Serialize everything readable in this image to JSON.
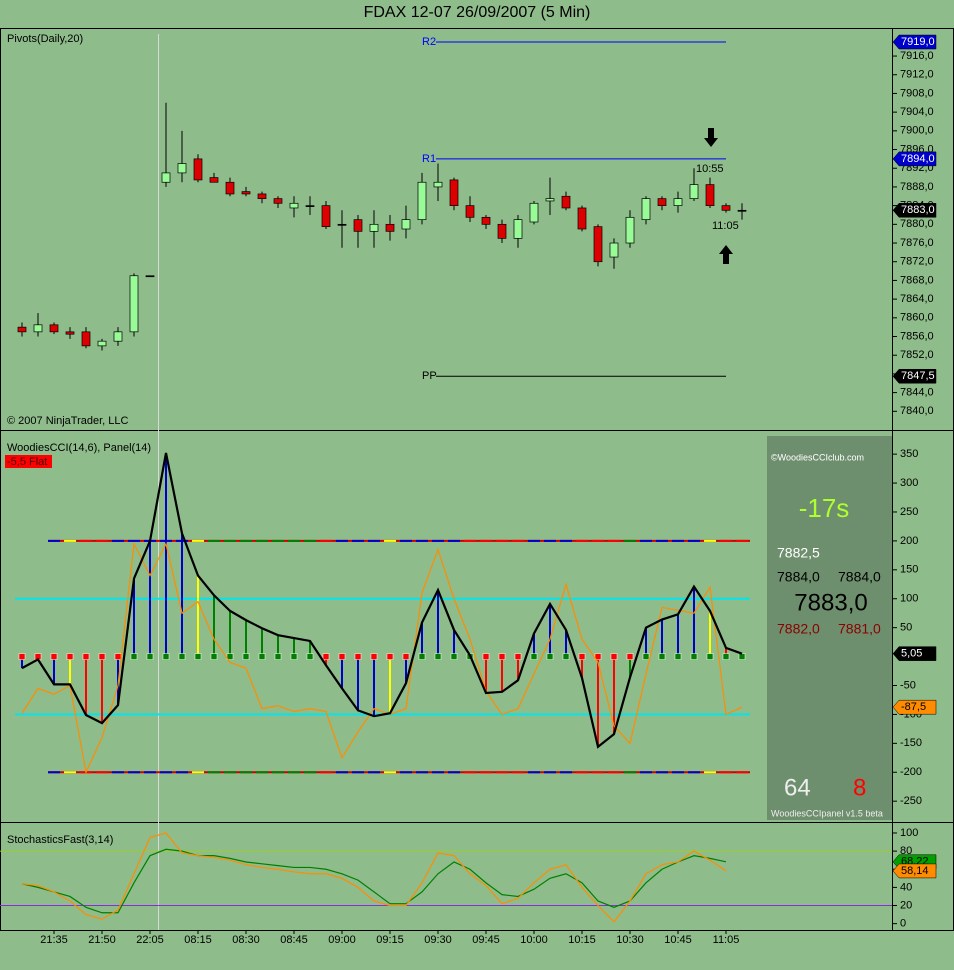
{
  "chart_data": [
    {
      "type": "candlestick",
      "title": "FDAX 12-07  26/09/2007  (5 Min)",
      "label": "Pivots(Daily,20)",
      "copyright": "© 2007 NinjaTrader, LLC",
      "open": [
        7858,
        7857,
        7858.5,
        7857,
        7857,
        7854,
        7855,
        7857,
        7869,
        7889,
        7891,
        7894,
        7890,
        7889,
        7887,
        7886.5,
        7885.5,
        7883.5,
        7884,
        7884,
        7880,
        7881,
        7878.5,
        7880,
        7879,
        7881,
        7888,
        7889.5,
        7884,
        7881.5,
        7880,
        7877,
        7880.5,
        7885,
        7886,
        7883.5,
        7879.5,
        7873,
        7876,
        7881,
        7885.5,
        7884,
        7885.5,
        7888.5,
        7884,
        7883
      ],
      "high": [
        7859,
        7861,
        7859,
        7858,
        7858,
        7855.5,
        7858,
        7869.5,
        7869,
        7906,
        7900,
        7895,
        7891,
        7890,
        7888,
        7887,
        7886,
        7886,
        7886,
        7885,
        7883,
        7882,
        7883,
        7882,
        7884,
        7891,
        7893,
        7890,
        7886,
        7882,
        7881,
        7882,
        7885,
        7890,
        7887,
        7884,
        7880,
        7877,
        7883,
        7886,
        7886,
        7887,
        7892,
        7890,
        7884.5,
        7884.5
      ],
      "low": [
        7856,
        7856,
        7856.5,
        7855.5,
        7853.5,
        7853,
        7854,
        7856,
        7869,
        7888,
        7889,
        7889,
        7889,
        7886,
        7886,
        7884.5,
        7883.5,
        7881.5,
        7882,
        7879,
        7875,
        7875,
        7875,
        7876.5,
        7877,
        7880,
        7885,
        7883,
        7880.5,
        7879,
        7876,
        7875,
        7880,
        7882,
        7883,
        7878.5,
        7871,
        7870.5,
        7875,
        7880,
        7883,
        7882.5,
        7885,
        7883.5,
        7882.5,
        7881
      ],
      "close": [
        7857,
        7858.5,
        7857,
        7856.5,
        7854,
        7855,
        7857,
        7869,
        7869,
        7891,
        7893,
        7889.5,
        7889,
        7886.5,
        7886.5,
        7885.5,
        7884.5,
        7884.5,
        7884,
        7879.5,
        7880,
        7878.5,
        7880,
        7878.5,
        7881,
        7889,
        7889,
        7884,
        7881.5,
        7880,
        7877,
        7881,
        7884.5,
        7885.5,
        7883.5,
        7879,
        7872,
        7876,
        7881.5,
        7885.5,
        7884,
        7885.5,
        7888.5,
        7884,
        7883,
        7883
      ],
      "up_color": "#98fb98",
      "down_color": "#dd0000",
      "pivots": [
        {
          "name": "R2",
          "value": 7919,
          "label": "7919,0",
          "color": "#0000ff"
        },
        {
          "name": "R1",
          "value": 7894,
          "label": "7894,0",
          "color": "#0000ff"
        },
        {
          "name": "PP",
          "value": 7847.5,
          "label": "7847,5",
          "color": "#000000"
        }
      ],
      "last_price": {
        "value": 7883,
        "label": "7883,0"
      },
      "annotations": [
        "10:55",
        "11:05"
      ],
      "ylim": [
        7836,
        7922
      ],
      "yticks": [
        {
          "value": 7840,
          "label": "7840,0"
        },
        {
          "value": 7844,
          "label": "7844,0"
        },
        {
          "value": 7848,
          "label": "7848,0"
        },
        {
          "value": 7852,
          "label": "7852,0"
        },
        {
          "value": 7856,
          "label": "7856,0"
        },
        {
          "value": 7860,
          "label": "7860,0"
        },
        {
          "value": 7864,
          "label": "7864,0"
        },
        {
          "value": 7868,
          "label": "7868,0"
        },
        {
          "value": 7872,
          "label": "7872,0"
        },
        {
          "value": 7876,
          "label": "7876,0"
        },
        {
          "value": 7880,
          "label": "7880,0"
        },
        {
          "value": 7884,
          "label": "7884,0"
        },
        {
          "value": 7888,
          "label": "7888,0"
        },
        {
          "value": 7892,
          "label": "7892,0"
        },
        {
          "value": 7896,
          "label": "7896,0"
        },
        {
          "value": 7900,
          "label": "7900,0"
        },
        {
          "value": 7904,
          "label": "7904,0"
        },
        {
          "value": 7908,
          "label": "7908,0"
        },
        {
          "value": 7912,
          "label": "7912,0"
        },
        {
          "value": 7916,
          "label": "7916,0"
        }
      ]
    },
    {
      "type": "cci",
      "label": "WoodiesCCI(14,6), Panel(14)",
      "trend_tag": "-5,5 Flat",
      "values": [
        -20,
        -5,
        -48,
        -48,
        -101,
        -115,
        -84,
        135,
        200,
        352,
        213,
        140,
        106,
        79,
        63,
        49,
        37,
        32,
        27,
        -15,
        -55,
        -93,
        -103,
        -98,
        -46,
        59,
        115,
        46,
        2,
        -63,
        -61,
        -41,
        40,
        91,
        46,
        -37,
        -156,
        -134,
        -36,
        50,
        64,
        73,
        121,
        79,
        15,
        5.05
      ],
      "value_label": "5,05",
      "color": "#000000",
      "bar_colors": [
        "#0000cd",
        "#0000cd",
        "#0000cd",
        "#ffff00",
        "#ff0000",
        "#ff0000",
        "#0000cd",
        "#0000cd",
        "#0000cd",
        "#0000cd",
        "#0000cd",
        "#ffff00",
        "#008000",
        "#008000",
        "#008000",
        "#008000",
        "#008000",
        "#008000",
        "#008000",
        "#ff0000",
        "#0000cd",
        "#0000cd",
        "#0000cd",
        "#ffff00",
        "#0000cd",
        "#0000cd",
        "#0000cd",
        "#0000cd",
        "#ff0000",
        "#ff0000",
        "#ff0000",
        "#ff0000",
        "#0000cd",
        "#0000cd",
        "#0000cd",
        "#ff0000",
        "#ff0000",
        "#ff0000",
        "#008000",
        "#0000cd",
        "#0000cd",
        "#0000cd",
        "#0000cd",
        "#ffff00",
        "#ff0000",
        "#ff0000"
      ],
      "turbo": {
        "color": "#ff8c00",
        "values": [
          -98,
          -55,
          -65,
          -50,
          -200,
          -140,
          -50,
          195,
          140,
          195,
          75,
          95,
          30,
          -10,
          -20,
          -90,
          -85,
          -95,
          -90,
          -95,
          -175,
          -130,
          -90,
          -100,
          -90,
          110,
          185,
          100,
          30,
          -60,
          -100,
          -90,
          -30,
          30,
          125,
          30,
          -10,
          -120,
          -150,
          -30,
          85,
          80,
          75,
          120,
          -100,
          -87.5
        ],
        "value_label": "-87,5"
      },
      "levels": [
        200,
        100,
        -100,
        -200
      ],
      "level_colors": [
        "#cc0000",
        "#00e5ee",
        "#00e5ee",
        "#cc0000"
      ],
      "panel": {
        "site": "©WoodiesCCIclub.com",
        "timer": "-17s",
        "mid": "7882,5",
        "ask": [
          "7884,0",
          "7884,0"
        ],
        "last": "7883,0",
        "bid": [
          "7882,0",
          "7881,0"
        ],
        "count_up": "64",
        "count_down": "8",
        "footer": "WoodiesCCIpanel v1.5 beta"
      },
      "ylim": [
        -286,
        390
      ],
      "yticks": [
        -250,
        -200,
        -150,
        -100,
        -50,
        50,
        100,
        150,
        200,
        250,
        300,
        350
      ]
    },
    {
      "type": "stochastics",
      "label": "StochasticsFast(3,14)",
      "categories": [
        null,
        null,
        "21:35",
        null,
        null,
        "21:50",
        null,
        null,
        "22:05",
        null,
        null,
        "08:15",
        null,
        null,
        "08:30",
        null,
        null,
        "08:45",
        null,
        null,
        "09:00",
        null,
        null,
        "09:15",
        null,
        null,
        "09:30",
        null,
        null,
        "09:45",
        null,
        null,
        "10:00",
        null,
        null,
        "10:15",
        null,
        null,
        "10:30",
        null,
        null,
        "10:45",
        null,
        null,
        "11:05",
        null
      ],
      "series": [
        {
          "color": "#008000",
          "values": [
            44,
            40,
            35,
            30,
            18,
            12,
            12,
            45,
            75,
            82,
            80,
            75,
            75,
            72,
            68,
            66,
            64,
            62,
            62,
            60,
            55,
            48,
            35,
            22,
            22,
            35,
            55,
            68,
            60,
            45,
            32,
            30,
            38,
            50,
            55,
            45,
            25,
            18,
            25,
            45,
            60,
            68,
            75,
            72,
            68.22,
            null
          ],
          "value_label": "68,22"
        },
        {
          "color": "#ff8c00",
          "values": [
            44,
            42,
            35,
            25,
            10,
            5,
            15,
            55,
            95,
            100,
            78,
            75,
            73,
            70,
            65,
            62,
            60,
            57,
            55,
            55,
            50,
            40,
            25,
            20,
            20,
            45,
            78,
            75,
            55,
            42,
            22,
            28,
            45,
            60,
            65,
            40,
            20,
            2,
            25,
            55,
            65,
            68,
            80,
            70,
            58.14,
            null
          ],
          "value_label": "58,14"
        }
      ],
      "levels": [
        80,
        20
      ],
      "level_colors": [
        "#9acd32",
        "#8a2be2"
      ],
      "ylim": [
        -7,
        111
      ],
      "yticks": [
        0,
        20,
        40,
        60,
        80,
        100
      ]
    }
  ]
}
